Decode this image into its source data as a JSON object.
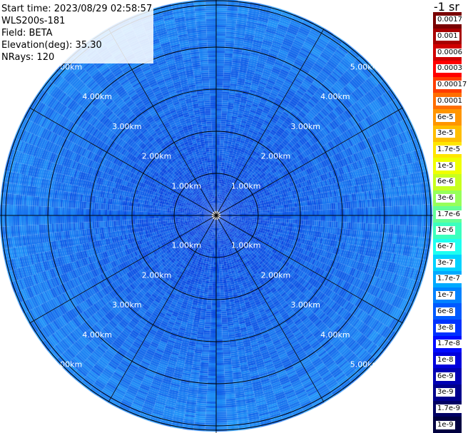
{
  "info": {
    "start_time": "Start time: 2023/08/29 02:58:57",
    "device": "WLS200s-181",
    "field": "Field: BETA",
    "elevation": "Elevation(deg): 35.30",
    "nrays": "NRays: 120"
  },
  "colorbar": {
    "unit": "-1 sr",
    "labels": [
      "0.0017",
      "0.001",
      "0.0006",
      "0.0003",
      "0.00017",
      "0.0001",
      "6e-5",
      "3e-5",
      "1.7e-5",
      "1e-5",
      "6e-6",
      "3e-6",
      "1.7e-6",
      "1e-6",
      "6e-7",
      "3e-7",
      "1.7e-7",
      "1e-7",
      "6e-8",
      "3e-8",
      "1.7e-8",
      "1e-8",
      "6e-9",
      "3e-9",
      "1.7e-9",
      "1e-9"
    ],
    "colors": [
      "#7a0000",
      "#a80000",
      "#d00000",
      "#ff0000",
      "#ff3c00",
      "#ff6e00",
      "#ff9600",
      "#ffbe00",
      "#ffe600",
      "#f0ff00",
      "#c8ff1e",
      "#96ff5a",
      "#64ff96",
      "#3cffbe",
      "#1efff0",
      "#00d2ff",
      "#00aaff",
      "#0082ff",
      "#005aff",
      "#0032ff",
      "#000aff",
      "#0000dc",
      "#0000b4",
      "#00008c",
      "#000064",
      "#000040"
    ]
  },
  "range_rings": {
    "labels": [
      "1.00km",
      "2.00km",
      "3.00km",
      "4.00km",
      "5.00km"
    ]
  }
}
